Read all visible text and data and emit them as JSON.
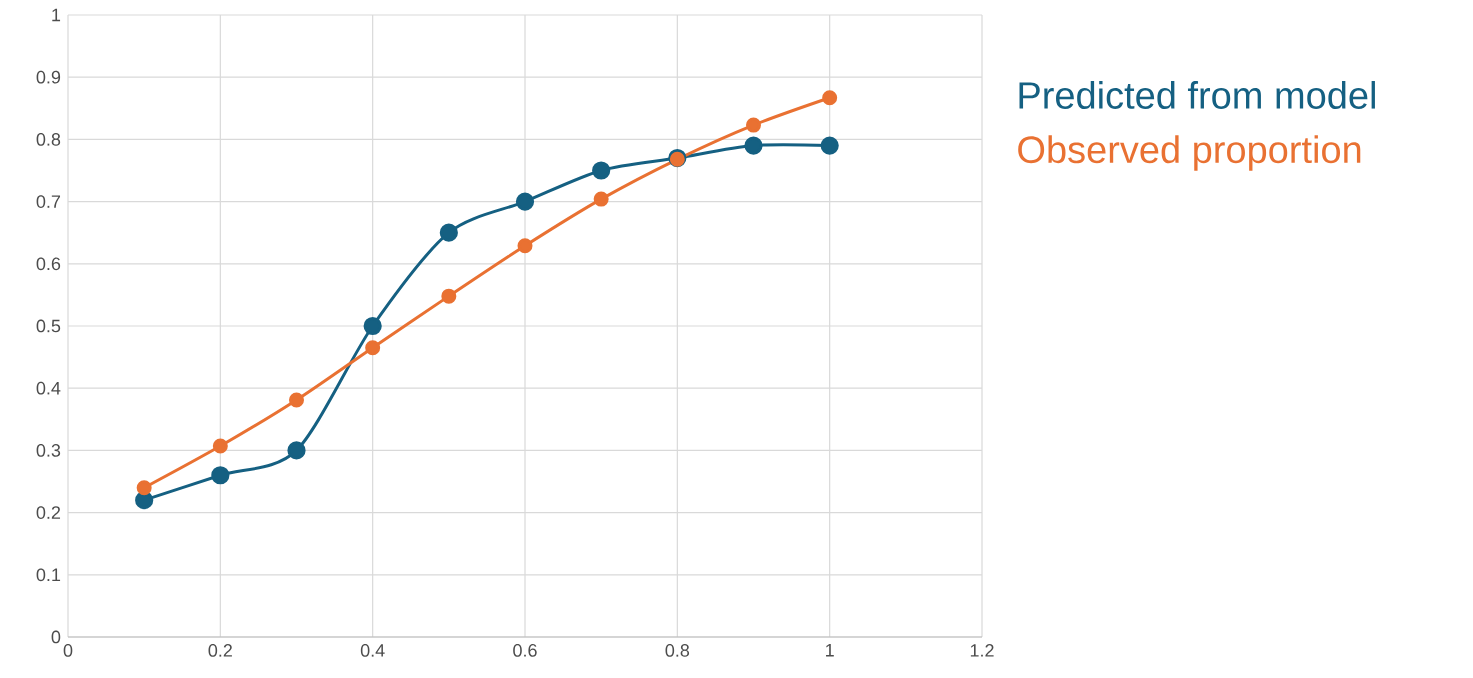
{
  "chart_data": {
    "type": "line",
    "x": [
      0.1,
      0.2,
      0.3,
      0.4,
      0.5,
      0.6,
      0.7,
      0.8,
      0.9,
      1
    ],
    "series": [
      {
        "name": "Predicted from model",
        "color": "#156082",
        "values": [
          0.22,
          0.26,
          0.3,
          0.5,
          0.65,
          0.7,
          0.75,
          0.77,
          0.79,
          0.79
        ]
      },
      {
        "name": "Observed proportion",
        "color": "#e97132",
        "values": [
          0.24,
          0.307,
          0.381,
          0.465,
          0.548,
          0.629,
          0.704,
          0.768,
          0.823,
          0.867
        ]
      }
    ],
    "xlim": [
      0,
      1.2
    ],
    "xticks": [
      0,
      0.2,
      0.4,
      0.6,
      0.8,
      1,
      1.2
    ],
    "ylim": [
      0,
      1
    ],
    "yticks": [
      0,
      0.1,
      0.2,
      0.3,
      0.4,
      0.5,
      0.6,
      0.7,
      0.8,
      0.9,
      1
    ],
    "grid": true,
    "legend": "right",
    "marker": "circle",
    "line_style": "solid"
  }
}
